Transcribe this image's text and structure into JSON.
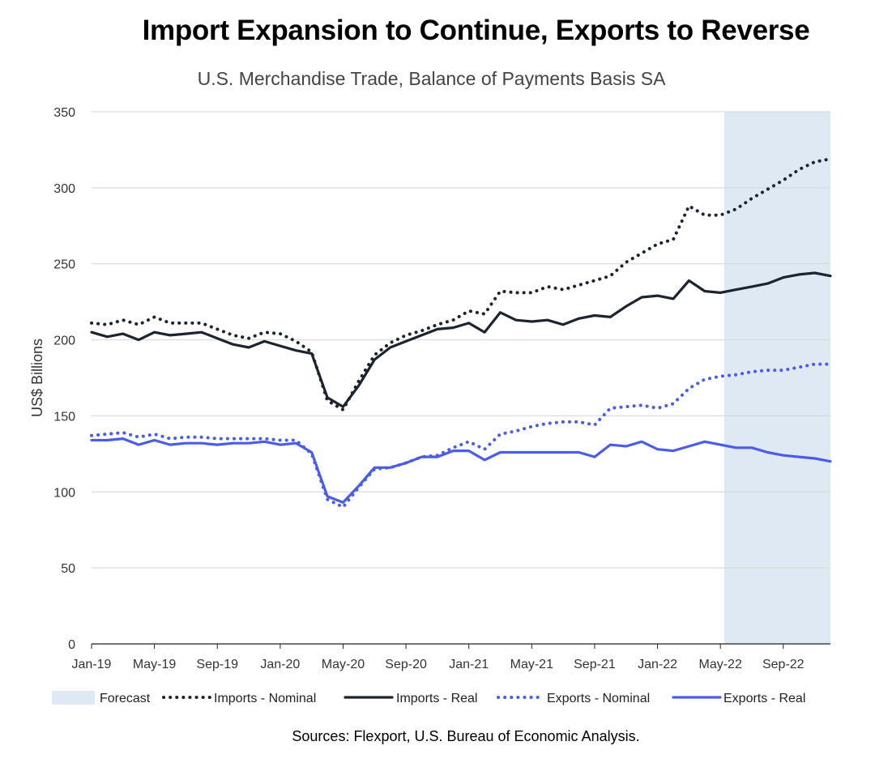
{
  "title": "Import Expansion to Continue, Exports to Reverse",
  "subtitle": "U.S. Merchandise Trade, Balance of Payments Basis SA",
  "source": "Sources: Flexport, U.S. Bureau of Economic Analysis.",
  "colors": {
    "imports": "#1c2430",
    "exports": "#4a5ce8",
    "forecast": "#dfe9f3",
    "grid": "#d4d4d4"
  },
  "chart_data": {
    "type": "line",
    "ylabel": "US$ Billions",
    "ylim": [
      0,
      350
    ],
    "yticks": [
      0,
      50,
      100,
      150,
      200,
      250,
      300,
      350
    ],
    "x": [
      "Jan-19",
      "Feb-19",
      "Mar-19",
      "Apr-19",
      "May-19",
      "Jun-19",
      "Jul-19",
      "Aug-19",
      "Sep-19",
      "Oct-19",
      "Nov-19",
      "Dec-19",
      "Jan-20",
      "Feb-20",
      "Mar-20",
      "Apr-20",
      "May-20",
      "Jun-20",
      "Jul-20",
      "Aug-20",
      "Sep-20",
      "Oct-20",
      "Nov-20",
      "Dec-20",
      "Jan-21",
      "Feb-21",
      "Mar-21",
      "Apr-21",
      "May-21",
      "Jun-21",
      "Jul-21",
      "Aug-21",
      "Sep-21",
      "Oct-21",
      "Nov-21",
      "Dec-21",
      "Jan-22",
      "Feb-22",
      "Mar-22",
      "Apr-22",
      "May-22",
      "Jun-22",
      "Jul-22",
      "Aug-22",
      "Sep-22",
      "Oct-22",
      "Nov-22",
      "Dec-22"
    ],
    "x_tick_labels": [
      "Jan-19",
      "May-19",
      "Sep-19",
      "Jan-20",
      "May-20",
      "Sep-20",
      "Jan-21",
      "May-21",
      "Sep-21",
      "Jan-22",
      "May-22",
      "Sep-22"
    ],
    "forecast_region": {
      "label": "Forecast",
      "start": "May-22",
      "end": "Dec-22"
    },
    "legend_position": "bottom",
    "series": [
      {
        "name": "Imports - Nominal",
        "style": "dotted",
        "color": "#1c2430",
        "values": [
          211,
          210,
          213,
          210,
          215,
          211,
          211,
          211,
          207,
          203,
          201,
          205,
          204,
          199,
          192,
          160,
          154,
          173,
          190,
          198,
          203,
          206,
          210,
          213,
          219,
          217,
          232,
          231,
          231,
          235,
          233,
          236,
          239,
          242,
          251,
          257,
          263,
          266,
          288,
          282,
          282,
          286,
          293,
          299,
          305,
          312,
          317,
          319
        ]
      },
      {
        "name": "Imports - Real",
        "style": "solid",
        "color": "#1c2430",
        "values": [
          205,
          202,
          204,
          200,
          205,
          203,
          204,
          205,
          201,
          197,
          195,
          199,
          196,
          193,
          191,
          162,
          156,
          170,
          187,
          195,
          199,
          203,
          207,
          208,
          211,
          205,
          218,
          213,
          212,
          213,
          210,
          214,
          216,
          215,
          222,
          228,
          229,
          227,
          239,
          232,
          231,
          233,
          235,
          237,
          241,
          243,
          244,
          242
        ]
      },
      {
        "name": "Exports - Nominal",
        "style": "dotted",
        "color": "#4a5ce8",
        "values": [
          137,
          138,
          139,
          136,
          138,
          135,
          136,
          136,
          135,
          135,
          135,
          135,
          134,
          134,
          125,
          95,
          90,
          103,
          115,
          116,
          119,
          123,
          124,
          129,
          133,
          128,
          138,
          140,
          143,
          145,
          146,
          146,
          144,
          155,
          156,
          157,
          155,
          158,
          168,
          174,
          176,
          177,
          179,
          180,
          180,
          182,
          184,
          184
        ]
      },
      {
        "name": "Exports - Real",
        "style": "solid",
        "color": "#4a5ce8",
        "values": [
          134,
          134,
          135,
          131,
          134,
          131,
          132,
          132,
          131,
          132,
          132,
          133,
          131,
          132,
          126,
          97,
          93,
          104,
          116,
          116,
          119,
          123,
          123,
          127,
          127,
          121,
          126,
          126,
          126,
          126,
          126,
          126,
          123,
          131,
          130,
          133,
          128,
          127,
          130,
          133,
          131,
          129,
          129,
          126,
          124,
          123,
          122,
          120
        ]
      }
    ]
  }
}
